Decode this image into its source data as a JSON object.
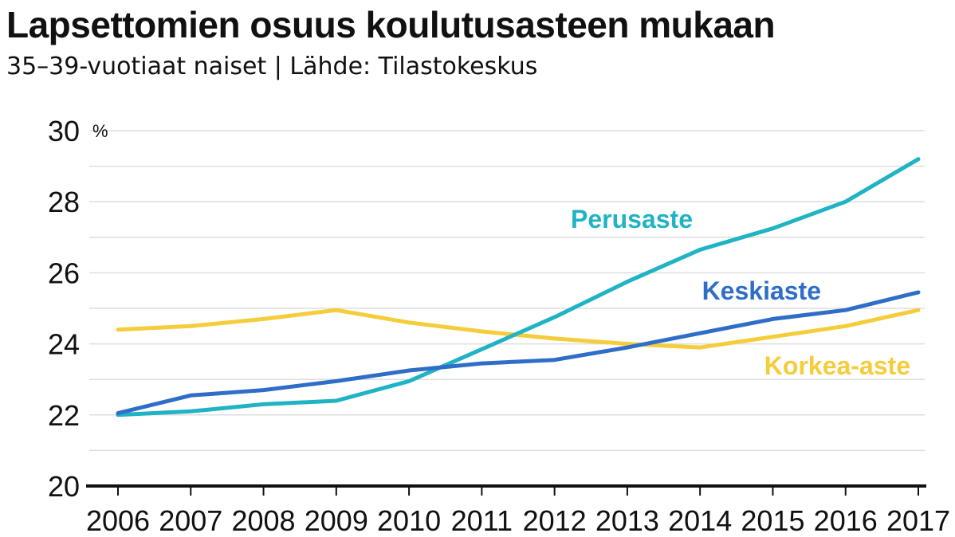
{
  "chart_data": {
    "type": "line",
    "title": "Lapsettomien osuus koulutusasteen mukaan",
    "subtitle": "35–39-vuotiaat naiset | Lähde: Tilastokeskus",
    "ylabel": "%",
    "xlabel": "",
    "ylim": [
      20,
      30
    ],
    "yticks": [
      "20",
      "22",
      "24",
      "26",
      "28",
      "30"
    ],
    "grid": true,
    "legend": "inline",
    "x": [
      "2006",
      "2007",
      "2008",
      "2009",
      "2010",
      "2011",
      "2012",
      "2013",
      "2014",
      "2015",
      "2016",
      "2017"
    ],
    "series": [
      {
        "name": "Perusaste",
        "color": "#1fb3c4",
        "values": [
          22.0,
          22.1,
          22.3,
          22.4,
          22.95,
          23.85,
          24.75,
          25.75,
          26.65,
          27.25,
          28.0,
          29.2
        ]
      },
      {
        "name": "Keskiaste",
        "color": "#2f6ec8",
        "values": [
          22.05,
          22.55,
          22.7,
          22.95,
          23.25,
          23.45,
          23.55,
          23.9,
          24.3,
          24.7,
          24.95,
          25.45
        ]
      },
      {
        "name": "Korkea-aste",
        "color": "#f5cc3a",
        "values": [
          24.4,
          24.5,
          24.7,
          24.95,
          24.6,
          24.35,
          24.15,
          24.0,
          23.9,
          24.2,
          24.5,
          24.95
        ]
      }
    ]
  }
}
